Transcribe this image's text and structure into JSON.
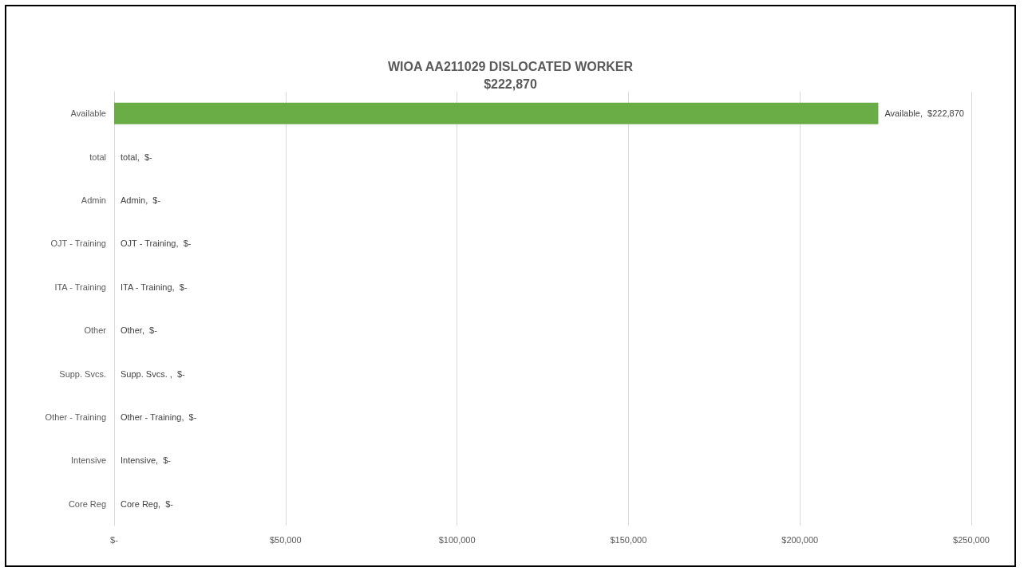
{
  "chart_data": {
    "type": "bar",
    "orientation": "horizontal",
    "title": "WIOA AA211029 DISLOCATED WORKER",
    "subtitle": "$222,870",
    "categories": [
      "Available",
      "total",
      "Admin",
      "OJT - Training",
      "ITA - Training",
      "Other",
      "Supp. Svcs.",
      "Other - Training",
      "Intensive",
      "Core Reg"
    ],
    "values": [
      222870,
      0,
      0,
      0,
      0,
      0,
      0,
      0,
      0,
      0
    ],
    "value_labels": [
      "Available,  $222,870",
      "total,  $-",
      "Admin,  $-",
      "OJT - Training,  $-",
      "ITA - Training,  $-",
      "Other,  $-",
      "Supp. Svcs. ,  $-",
      "Other - Training,  $-",
      "Intensive,  $-",
      "Core Reg,  $-"
    ],
    "color": "#6aac46",
    "xlim": [
      0,
      250000
    ],
    "xticks": [
      {
        "value": 0,
        "label": "$-"
      },
      {
        "value": 50000,
        "label": "$50,000"
      },
      {
        "value": 100000,
        "label": "$100,000"
      },
      {
        "value": 150000,
        "label": "$150,000"
      },
      {
        "value": 200000,
        "label": "$200,000"
      },
      {
        "value": 250000,
        "label": "$250,000"
      }
    ],
    "grid": "x"
  }
}
